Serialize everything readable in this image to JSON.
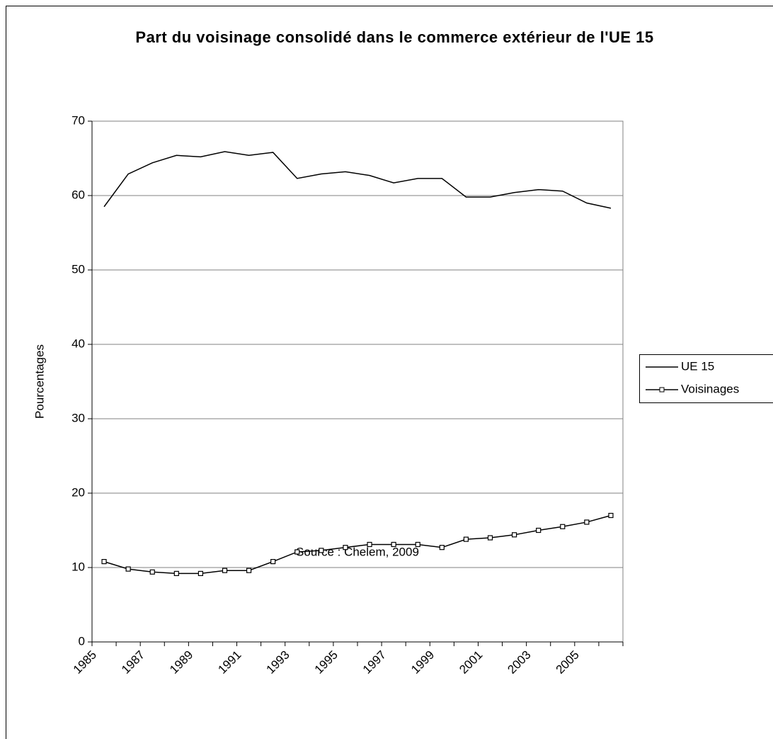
{
  "chart_data": {
    "type": "line",
    "title": "Part du voisinage consolidé dans le commerce extérieur de l'UE 15",
    "y_label": "Pourcentages",
    "x_label": "Source : Chelem, 2009",
    "categories": [
      "1985",
      null,
      "1987",
      null,
      "1989",
      null,
      "1991",
      null,
      "1993",
      null,
      "1995",
      null,
      "1997",
      null,
      "1999",
      null,
      "2001",
      null,
      "2003",
      null,
      "2005",
      null
    ],
    "series": [
      {
        "name": "UE 15",
        "color": "#000000",
        "marker": false,
        "values": [
          58.5,
          62.9,
          64.4,
          65.4,
          65.2,
          65.9,
          65.4,
          65.8,
          62.3,
          62.9,
          63.2,
          62.7,
          61.7,
          62.3,
          62.3,
          59.8,
          59.8,
          60.4,
          60.8,
          60.6,
          59.0,
          58.3
        ]
      },
      {
        "name": "Voisinages",
        "color": "#000000",
        "marker": true,
        "values": [
          10.8,
          9.8,
          9.4,
          9.2,
          9.2,
          9.6,
          9.6,
          10.8,
          12.1,
          12.3,
          12.7,
          13.1,
          13.1,
          13.1,
          12.7,
          13.8,
          14.0,
          14.4,
          15.0,
          15.5,
          16.1,
          17.0
        ]
      }
    ],
    "ylim": [
      0,
      70
    ],
    "yticks": [
      0,
      10,
      20,
      30,
      40,
      50,
      60,
      70
    ],
    "grid": true,
    "legend": "right"
  }
}
